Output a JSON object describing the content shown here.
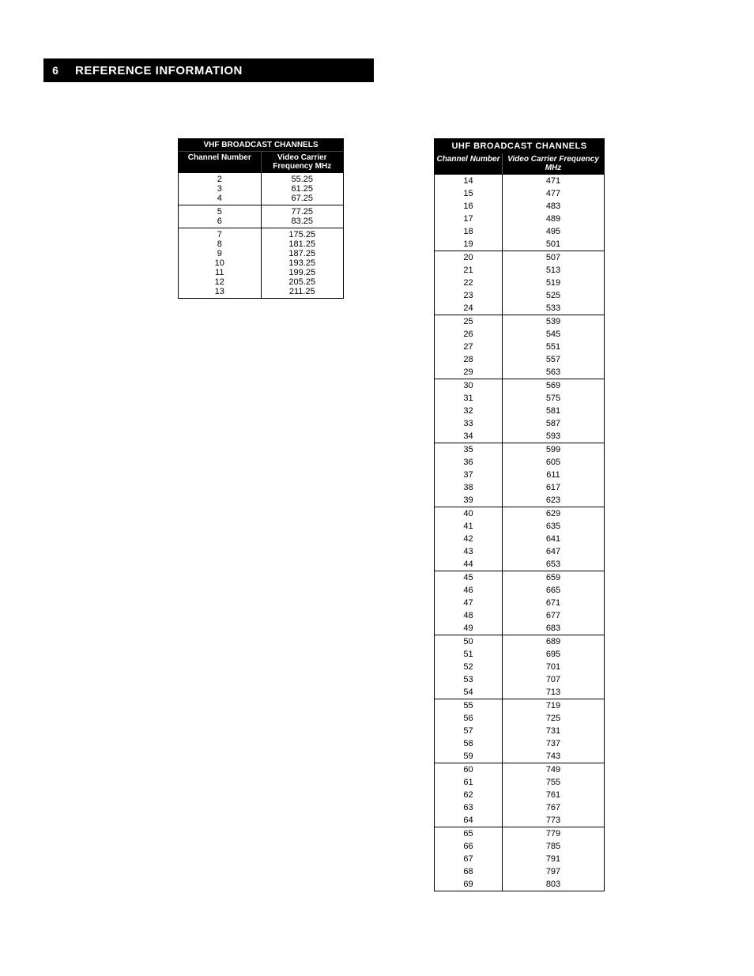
{
  "page_number": "6",
  "title": "REFERENCE INFORMATION",
  "left": {
    "header_top": "VHF BROADCAST CHANNELS",
    "header_col1": "Channel Number",
    "header_col2": "Video Carrier Frequency MHz",
    "blocks": [
      {
        "ch": [
          "2",
          "3",
          "4"
        ],
        "freq": [
          "55.25",
          "61.25",
          "67.25"
        ]
      },
      {
        "ch": [
          "5",
          "6"
        ],
        "freq": [
          "77.25",
          "83.25"
        ]
      },
      {
        "ch": [
          "7",
          "8",
          "9",
          "10",
          "11",
          "12",
          "13"
        ],
        "freq": [
          "175.25",
          "181.25",
          "187.25",
          "193.25",
          "199.25",
          "205.25",
          "211.25"
        ]
      }
    ]
  },
  "right": {
    "header_top": "UHF BROADCAST CHANNELS",
    "header_col1": "Channel Number",
    "header_col2": "Video Carrier Frequency MHz",
    "groups": [
      {
        "rows": [
          [
            "14",
            "471"
          ],
          [
            "15",
            "477"
          ],
          [
            "16",
            "483"
          ],
          [
            "17",
            "489"
          ],
          [
            "18",
            "495"
          ],
          [
            "19",
            "501"
          ]
        ]
      },
      {
        "rows": [
          [
            "20",
            "507"
          ],
          [
            "21",
            "513"
          ],
          [
            "22",
            "519"
          ],
          [
            "23",
            "525"
          ],
          [
            "24",
            "533"
          ]
        ]
      },
      {
        "rows": [
          [
            "25",
            "539"
          ],
          [
            "26",
            "545"
          ],
          [
            "27",
            "551"
          ],
          [
            "28",
            "557"
          ],
          [
            "29",
            "563"
          ]
        ]
      },
      {
        "rows": [
          [
            "30",
            "569"
          ],
          [
            "31",
            "575"
          ],
          [
            "32",
            "581"
          ],
          [
            "33",
            "587"
          ],
          [
            "34",
            "593"
          ]
        ]
      },
      {
        "rows": [
          [
            "35",
            "599"
          ],
          [
            "36",
            "605"
          ],
          [
            "37",
            "611"
          ],
          [
            "38",
            "617"
          ],
          [
            "39",
            "623"
          ]
        ]
      },
      {
        "rows": [
          [
            "40",
            "629"
          ],
          [
            "41",
            "635"
          ],
          [
            "42",
            "641"
          ],
          [
            "43",
            "647"
          ],
          [
            "44",
            "653"
          ]
        ]
      },
      {
        "rows": [
          [
            "45",
            "659"
          ],
          [
            "46",
            "665"
          ],
          [
            "47",
            "671"
          ],
          [
            "48",
            "677"
          ],
          [
            "49",
            "683"
          ]
        ]
      },
      {
        "rows": [
          [
            "50",
            "689"
          ],
          [
            "51",
            "695"
          ],
          [
            "52",
            "701"
          ],
          [
            "53",
            "707"
          ],
          [
            "54",
            "713"
          ]
        ]
      },
      {
        "rows": [
          [
            "55",
            "719"
          ],
          [
            "56",
            "725"
          ],
          [
            "57",
            "731"
          ],
          [
            "58",
            "737"
          ],
          [
            "59",
            "743"
          ]
        ]
      },
      {
        "rows": [
          [
            "60",
            "749"
          ],
          [
            "61",
            "755"
          ],
          [
            "62",
            "761"
          ],
          [
            "63",
            "767"
          ],
          [
            "64",
            "773"
          ]
        ]
      },
      {
        "rows": [
          [
            "65",
            "779"
          ],
          [
            "66",
            "785"
          ],
          [
            "67",
            "791"
          ],
          [
            "68",
            "797"
          ],
          [
            "69",
            "803"
          ]
        ]
      }
    ]
  }
}
